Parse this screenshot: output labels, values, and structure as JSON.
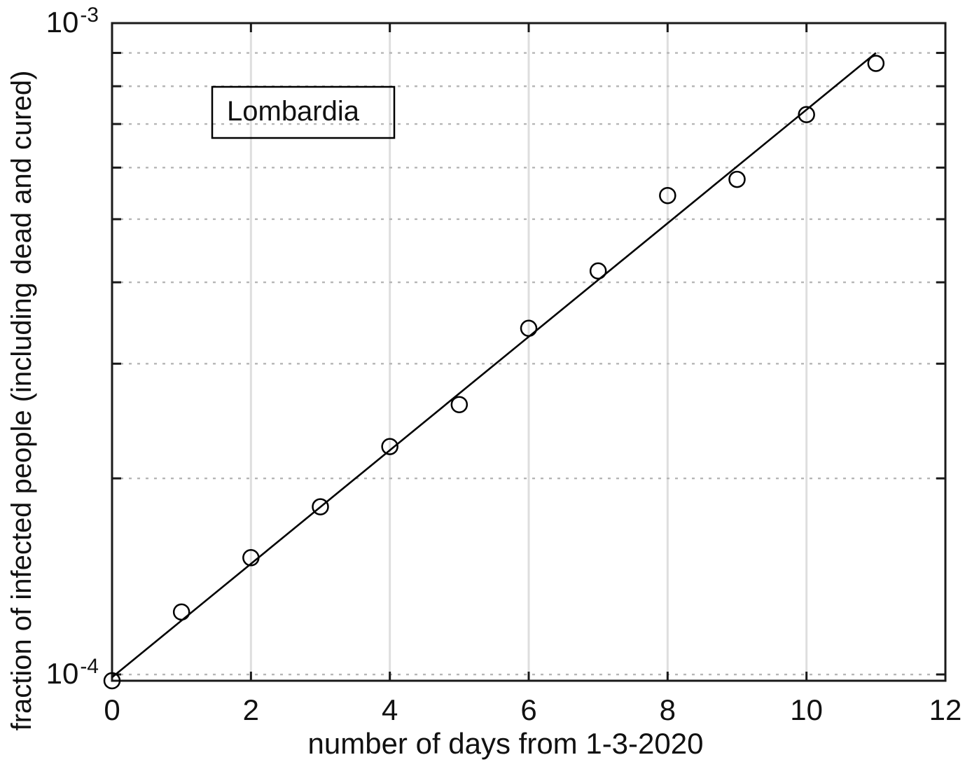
{
  "chart_data": {
    "type": "scatter",
    "title": "",
    "xlabel": "number of days from 1-3-2020",
    "ylabel": "fraction of infected people (including dead and cured)",
    "annotation": "Lombardia",
    "x": [
      0,
      1,
      2,
      3,
      4,
      5,
      6,
      7,
      8,
      9,
      10,
      11
    ],
    "y": [
      9.78e-05,
      0.0001247,
      0.0001511,
      0.0001809,
      0.0002238,
      0.0002596,
      0.00034,
      0.0004164,
      0.0005436,
      0.0005756,
      0.0007237,
      0.0008673
    ],
    "fit_line": {
      "x0": 0,
      "v0": 9.9e-05,
      "x1": 11,
      "v1": 0.0009
    },
    "xlim": [
      0,
      12
    ],
    "ylim": [
      9.78e-05,
      0.001
    ],
    "yscale": "log",
    "x_ticks": [
      0,
      2,
      4,
      6,
      8,
      10,
      12
    ],
    "x_tick_labels": [
      "0",
      "2",
      "4",
      "6",
      "8",
      "10",
      "12"
    ],
    "y_tick_labels": [
      {
        "value": 0.001,
        "base": "10",
        "exp": "-3"
      },
      {
        "value": 0.0001,
        "base": "10",
        "exp": "-4"
      }
    ],
    "y_minor_ticks": [
      0.0001,
      0.0002,
      0.0003,
      0.0004,
      0.0005,
      0.0006,
      0.0007,
      0.0008,
      0.0009
    ],
    "x_grid": [
      2,
      4,
      6,
      8,
      10
    ],
    "y_grid_minor": [
      0.0001,
      0.0002,
      0.0003,
      0.0004,
      0.0005,
      0.0006,
      0.0007,
      0.0008,
      0.0009
    ],
    "grid": true,
    "legend_position": "none",
    "marker": "open-circle",
    "colors": {
      "axis": "#1a1a1a",
      "text": "#111111",
      "line": "#000000",
      "marker": "#000000",
      "grid_major": "#dedede",
      "grid_minor": "#b6b6b6"
    }
  }
}
